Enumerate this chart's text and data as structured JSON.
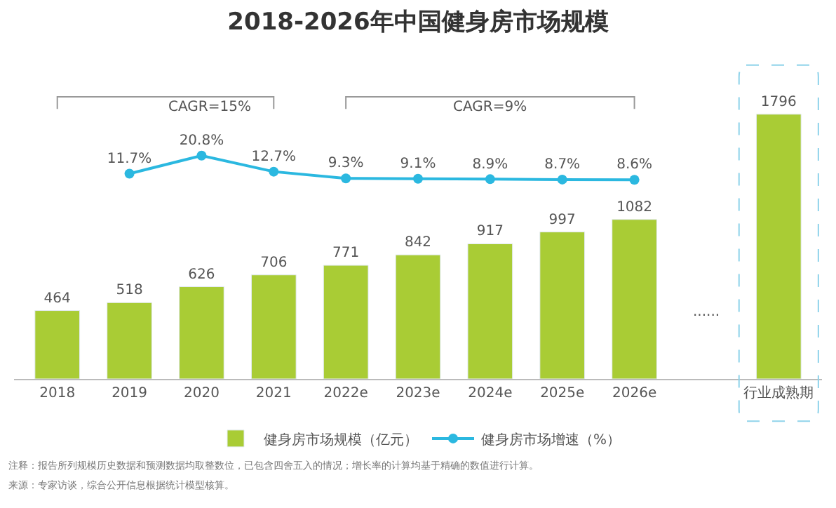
{
  "chart_data": {
    "type": "bar",
    "title": "2018-2026年中国健身房市场规模",
    "categories": [
      "2018",
      "2019",
      "2020",
      "2021",
      "2022e",
      "2023e",
      "2024e",
      "2025e",
      "2026e",
      null,
      "行业成熟期"
    ],
    "series": [
      {
        "name": "健身房市场规模（亿元）",
        "color": "#a9cc35",
        "values": [
          464,
          518,
          626,
          706,
          771,
          842,
          917,
          997,
          1082,
          null,
          1796
        ]
      },
      {
        "name": "健身房市场增速（%）",
        "type": "line",
        "axis": "y2",
        "color": "#2bb8e0",
        "values": [
          null,
          11.7,
          20.8,
          12.7,
          9.3,
          9.1,
          8.9,
          8.7,
          8.6,
          null,
          null
        ],
        "value_labels": [
          null,
          "11.7%",
          "20.8%",
          "12.7%",
          "9.3%",
          "9.1%",
          "8.9%",
          "8.7%",
          "8.6%",
          null,
          null
        ]
      }
    ],
    "tick_labels": "x",
    "data_labels": true,
    "legend": "bottom",
    "marker": "circle",
    "line_style": "solid",
    "annotations": [
      "CAGR=15%",
      "CAGR=9%",
      "......",
      "注释：报告所列规模历史数据和预测数据均取整数位，已包含四舍五入的情况；增长率的计算均基于精确的数值进行计算。",
      "来源：专家访谈，综合公开信息根据统计模型核算。"
    ]
  }
}
